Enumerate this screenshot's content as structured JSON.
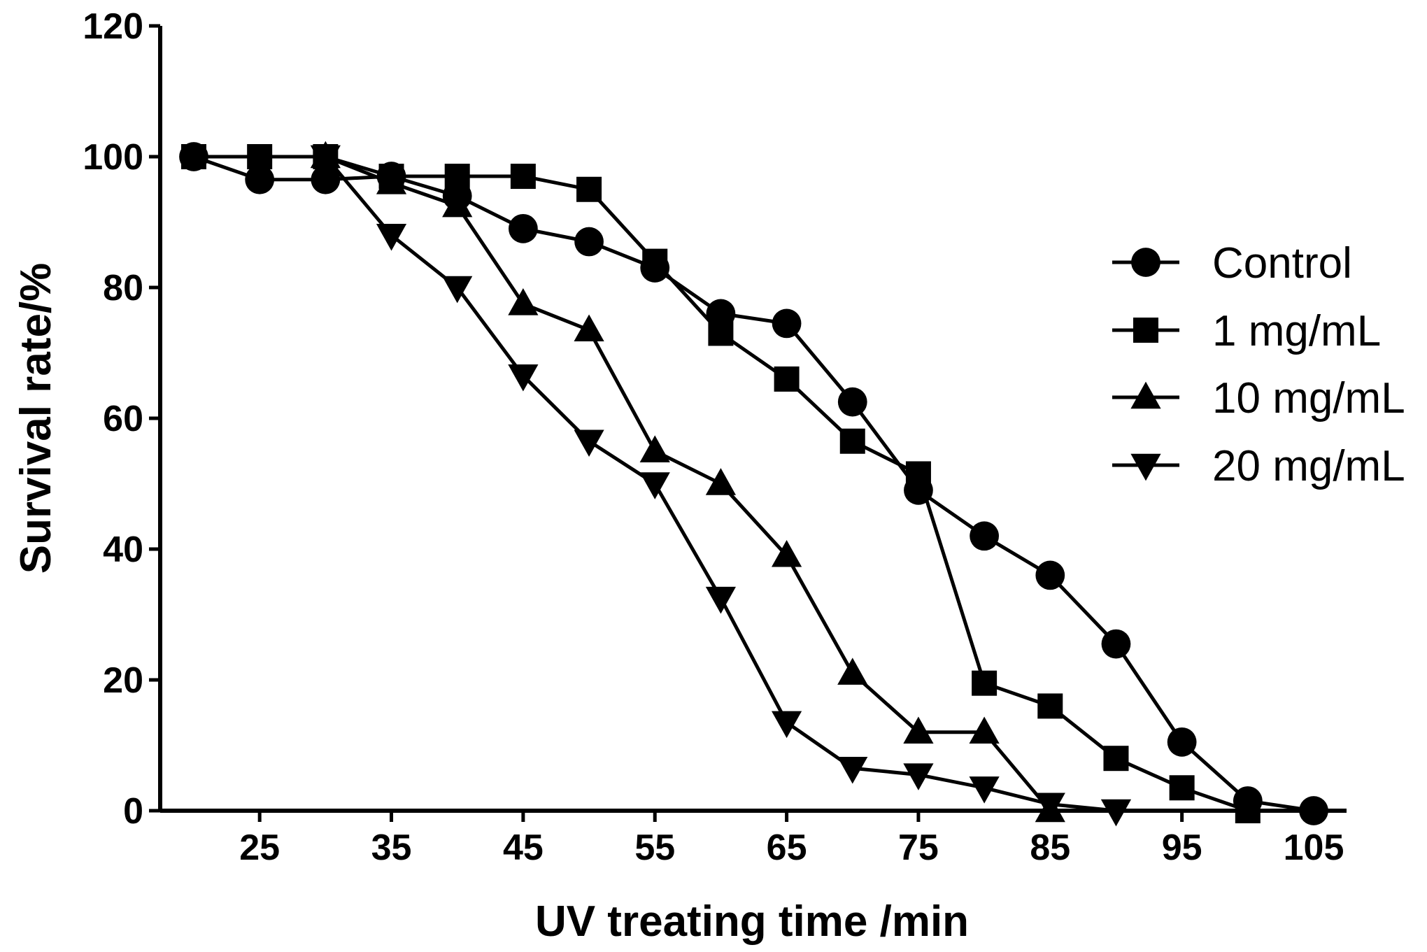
{
  "chart_data": {
    "type": "line",
    "xlabel": "UV treating time /min",
    "ylabel": "Survival rate/%",
    "xlim": [
      20,
      106
    ],
    "ylim": [
      0,
      120
    ],
    "xticks": [
      25,
      35,
      45,
      55,
      65,
      75,
      85,
      95,
      105
    ],
    "yticks": [
      0,
      20,
      40,
      60,
      80,
      100,
      120
    ],
    "x": [
      20,
      25,
      30,
      35,
      40,
      45,
      50,
      55,
      60,
      65,
      70,
      75,
      80,
      85,
      90,
      95,
      100,
      105
    ],
    "legend_position": "right",
    "series": [
      {
        "name": "Control",
        "marker": "circle",
        "x": [
          20,
          25,
          30,
          35,
          40,
          45,
          50,
          55,
          60,
          65,
          70,
          75,
          80,
          85,
          90,
          95,
          100,
          105
        ],
        "values": [
          100,
          96.5,
          96.5,
          97,
          94,
          89,
          87,
          83,
          76,
          74.5,
          62.5,
          49,
          42,
          36,
          25.5,
          10.5,
          1.5,
          0
        ]
      },
      {
        "name": "1 mg/mL",
        "marker": "square",
        "x": [
          20,
          25,
          30,
          35,
          40,
          45,
          50,
          55,
          60,
          65,
          70,
          75,
          80,
          85,
          90,
          95,
          100
        ],
        "values": [
          100,
          100,
          100,
          97,
          97,
          97,
          95,
          84,
          73,
          66,
          56.5,
          51.5,
          19.5,
          16,
          8,
          3.5,
          0
        ]
      },
      {
        "name": "10 mg/mL",
        "marker": "triangle-up",
        "x": [
          30,
          35,
          40,
          45,
          50,
          55,
          60,
          65,
          70,
          75,
          80,
          85
        ],
        "values": [
          100,
          96,
          92.5,
          77.5,
          73.5,
          55,
          50,
          39,
          21,
          12,
          12,
          0
        ]
      },
      {
        "name": "20 mg/mL",
        "marker": "triangle-down",
        "x": [
          30,
          35,
          40,
          45,
          50,
          55,
          60,
          65,
          70,
          75,
          80,
          85,
          90
        ],
        "values": [
          100,
          88,
          80,
          66.5,
          56.5,
          50,
          32.5,
          13.5,
          6.5,
          5.5,
          3.5,
          1,
          0
        ]
      }
    ]
  }
}
